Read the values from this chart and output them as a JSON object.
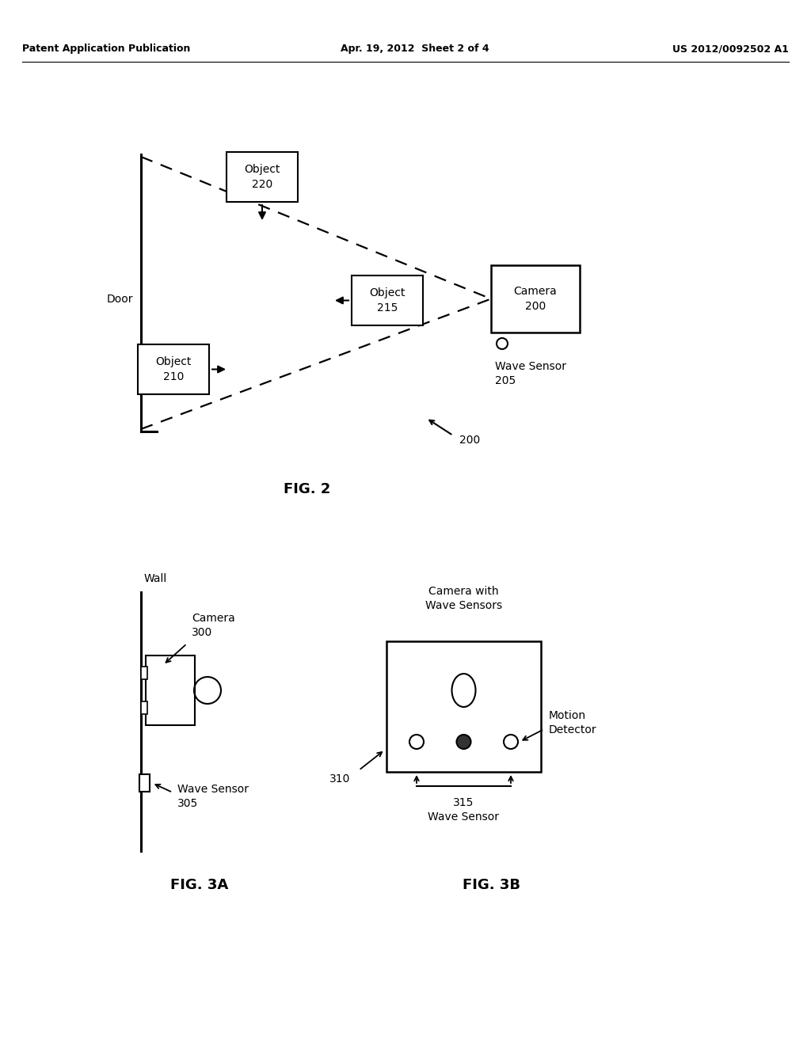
{
  "bg_color": "#ffffff",
  "header_left": "Patent Application Publication",
  "header_mid": "Apr. 19, 2012  Sheet 2 of 4",
  "header_right": "US 2012/0092502 A1",
  "fig2": {
    "caption": "FIG. 2",
    "door_label": "Door",
    "camera_label": "Camera\n200",
    "wave_sensor_label": "Wave Sensor\n205",
    "obj220_label": "Object\n220",
    "obj215_label": "Object\n215",
    "obj210_label": "Object\n210",
    "ref200_label": "200"
  },
  "fig3a": {
    "caption": "FIG. 3A",
    "wall_label": "Wall",
    "camera_label": "Camera\n300",
    "wave_sensor_label": "Wave Sensor\n305"
  },
  "fig3b": {
    "caption": "FIG. 3B",
    "camera_wave_label": "Camera with\nWave Sensors",
    "motion_detector_label": "Motion\nDetector",
    "ref310_label": "310",
    "ref315_label": "315",
    "wave_sensor_label": "Wave Sensor"
  }
}
